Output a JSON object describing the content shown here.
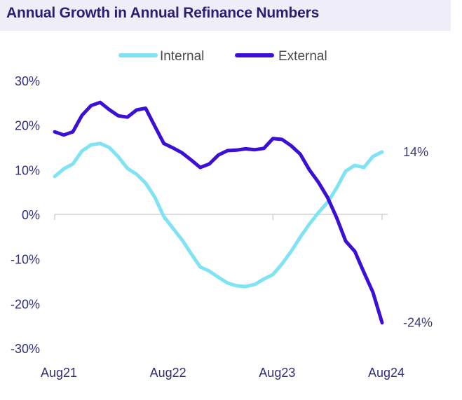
{
  "chart_data": {
    "type": "line",
    "title": "Annual Growth in Annual Refinance Numbers",
    "ylim": [
      -30,
      30
    ],
    "yticks": [
      "30%",
      "20%",
      "10%",
      "0%",
      "-10%",
      "-20%",
      "-30%"
    ],
    "ytick_values": [
      30,
      20,
      10,
      0,
      -10,
      -20,
      -30
    ],
    "xticks": [
      "Aug21",
      "Aug22",
      "Aug23",
      "Aug24"
    ],
    "xtick_positions": [
      0,
      12,
      24,
      36
    ],
    "x_range": [
      0,
      36
    ],
    "legend_position": "top",
    "grid": false,
    "series": [
      {
        "name": "Internal",
        "color": "#7fe3f3",
        "end_label": "14%",
        "x": [
          0,
          1,
          2,
          3,
          4,
          5,
          6,
          7,
          8,
          9,
          10,
          11,
          12,
          13,
          14,
          15,
          16,
          17,
          18,
          19,
          20,
          21,
          22,
          23,
          24,
          25,
          26,
          27,
          28,
          29,
          30,
          31,
          32,
          33,
          34,
          35,
          36
        ],
        "values": [
          8.5,
          10.2,
          11.3,
          14.2,
          15.6,
          15.9,
          15.0,
          12.9,
          10.3,
          9.0,
          7.0,
          3.9,
          -0.5,
          -3.1,
          -5.7,
          -8.8,
          -11.8,
          -12.7,
          -14.1,
          -15.4,
          -16.0,
          -16.2,
          -15.7,
          -14.5,
          -13.5,
          -11.1,
          -8.3,
          -5.1,
          -2.2,
          0.4,
          2.7,
          5.9,
          9.7,
          11.0,
          10.5,
          13.0,
          14.0
        ]
      },
      {
        "name": "External",
        "color": "#3c0fd6",
        "end_label": "-24%",
        "x": [
          0,
          1,
          2,
          3,
          4,
          5,
          6,
          7,
          8,
          9,
          10,
          11,
          12,
          13,
          14,
          15,
          16,
          17,
          18,
          19,
          20,
          21,
          22,
          23,
          24,
          25,
          26,
          27,
          28,
          29,
          30,
          31,
          32,
          33,
          34,
          35,
          36
        ],
        "values": [
          18.5,
          17.8,
          18.5,
          22.2,
          24.4,
          25.1,
          23.5,
          22.1,
          21.8,
          23.4,
          23.8,
          19.8,
          15.9,
          14.9,
          13.8,
          12.2,
          10.5,
          11.3,
          13.3,
          14.3,
          14.4,
          14.7,
          14.5,
          14.8,
          17.0,
          16.8,
          15.4,
          13.5,
          10.0,
          7.2,
          3.8,
          -0.7,
          -6.0,
          -8.3,
          -13.0,
          -17.5,
          -24.3
        ]
      }
    ]
  }
}
